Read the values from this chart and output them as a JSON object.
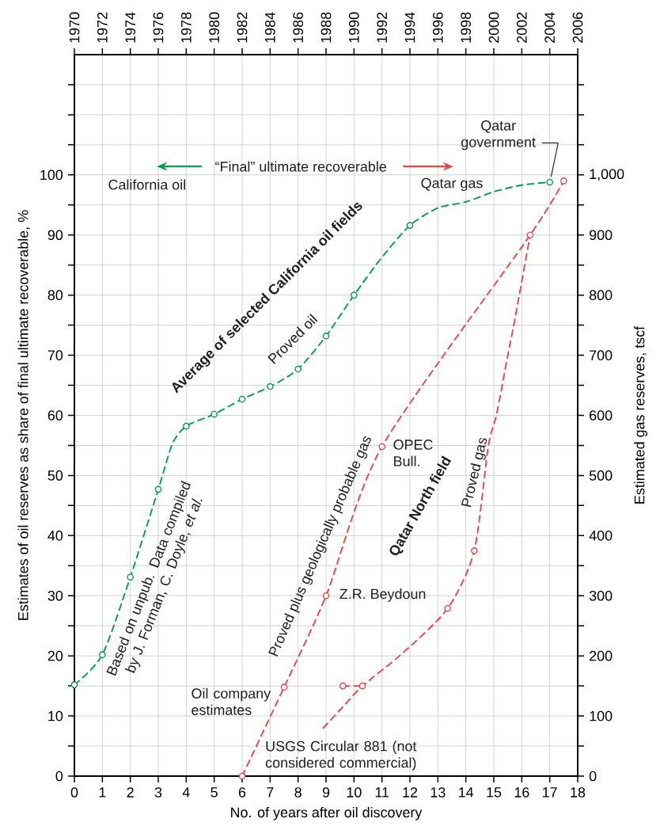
{
  "chart_data": {
    "type": "line",
    "xlabel": "No. of years after oil discovery",
    "ylabel": "Estimates of oil reserves as share of final ultimate recoverable, %",
    "y2label": "Estimated gas reserves, tscf",
    "xlim": [
      0,
      18
    ],
    "xticks": [
      0,
      1,
      2,
      3,
      4,
      5,
      6,
      7,
      8,
      9,
      10,
      11,
      12,
      13,
      14,
      15,
      16,
      17,
      18
    ],
    "ylim": [
      0,
      120
    ],
    "yticks": [
      0,
      {
        "value": 5,
        "label": null
      },
      10,
      {
        "value": 15,
        "label": null
      },
      20,
      {
        "value": 25,
        "label": null
      },
      30,
      {
        "value": 35,
        "label": null
      },
      40,
      {
        "value": 45,
        "label": null
      },
      50,
      {
        "value": 55,
        "label": null
      },
      60,
      {
        "value": 65,
        "label": null
      },
      70,
      {
        "value": 75,
        "label": null
      },
      80,
      {
        "value": 85,
        "label": null
      },
      90,
      {
        "value": 95,
        "label": null
      },
      100,
      {
        "value": 105,
        "label": null
      },
      {
        "value": 110,
        "label": null
      },
      {
        "value": 115,
        "label": null
      }
    ],
    "y2lim": [
      0,
      1200
    ],
    "y2ticks": [
      0,
      {
        "value": 50,
        "label": null
      },
      100,
      {
        "value": 150,
        "label": null
      },
      200,
      {
        "value": 250,
        "label": null
      },
      300,
      {
        "value": 350,
        "label": null
      },
      400,
      {
        "value": 450,
        "label": null
      },
      500,
      {
        "value": 550,
        "label": null
      },
      600,
      {
        "value": 650,
        "label": null
      },
      700,
      {
        "value": 750,
        "label": null
      },
      800,
      {
        "value": 850,
        "label": null
      },
      900,
      {
        "value": 950,
        "label": null
      },
      {
        "value": 1000,
        "label": "1,000"
      },
      {
        "value": 1050,
        "label": null
      },
      {
        "value": 1100,
        "label": null
      },
      {
        "value": 1150,
        "label": null
      }
    ],
    "x2lim": [
      1970,
      2006
    ],
    "x2ticks": [
      1970,
      1972,
      1974,
      1976,
      1978,
      1980,
      1982,
      1984,
      1986,
      1988,
      1990,
      1992,
      1994,
      1996,
      1998,
      2000,
      2002,
      2004,
      2006
    ],
    "grid": true,
    "line_style": "dashed",
    "series": [
      {
        "name": "Proved oil",
        "type": "line",
        "color": "#00a04a",
        "marker": "none",
        "x": [
          0,
          1,
          2,
          3,
          3.5,
          4,
          5,
          6,
          7,
          8,
          9,
          10,
          11,
          12,
          13,
          14,
          15,
          16,
          17
        ],
        "values": [
          15.2,
          20.2,
          33.1,
          47.7,
          55.2,
          58.2,
          60.2,
          62.7,
          64.8,
          67.7,
          73.2,
          80,
          86.3,
          91.6,
          94.5,
          95.5,
          97.2,
          98.3,
          98.8
        ]
      },
      {
        "type": "scatter",
        "color": "#00a04a",
        "marker": "circle",
        "x": [
          0,
          1,
          2,
          3,
          4,
          5,
          6,
          7,
          8,
          9,
          10,
          12,
          17
        ],
        "values": [
          15.2,
          20.2,
          33.1,
          47.7,
          58.2,
          60.2,
          62.7,
          64.8,
          67.7,
          73.2,
          80,
          91.6,
          98.8
        ]
      },
      {
        "name": "Proved plus geologically probable gas",
        "type": "line",
        "axis": "y2",
        "color": "#ee4444",
        "marker": "none",
        "x": [
          6,
          7.5,
          9,
          11,
          16.3,
          17.5
        ],
        "values": [
          0,
          148,
          300,
          548,
          900,
          990
        ]
      },
      {
        "name": "Proved gas",
        "type": "line",
        "axis": "y2",
        "color": "#ee4444",
        "marker": "none",
        "x": [
          8.9,
          9.6,
          10.3,
          11.7,
          13.35,
          14.3,
          14.8,
          15.1,
          15.5,
          15.75,
          16.3
        ],
        "values": [
          80,
          115,
          150,
          203,
          279,
          375,
          548,
          602,
          700,
          759,
          900
        ]
      },
      {
        "type": "line",
        "axis": "y2",
        "color": "#ee4444",
        "marker": "none",
        "x": [
          9.6,
          10.3
        ],
        "values": [
          150,
          150
        ]
      },
      {
        "type": "scatter",
        "axis": "y2",
        "color": "#ee4444",
        "marker": "circle",
        "x": [
          6,
          7.5,
          9,
          11,
          16.3,
          17.5,
          9.6,
          10.3,
          13.35,
          14.3
        ],
        "values": [
          0,
          148,
          300,
          548,
          900,
          990,
          150,
          150,
          279,
          375
        ]
      }
    ],
    "annotations": [
      "California oil",
      "Qatar gas",
      "“Final” ultimate recoverable",
      "Average of selected California oil fields",
      "Based on unpub. Data compiled by J. Forman, C. Doyle, *et al.*",
      "Qatar North field",
      "Oil company estimates",
      "Z.R. Beydoun",
      "OPEC Bull.",
      "USGS Circular 881 (not considered commercial)",
      {
        "text": "Qatar government",
        "x": 17,
        "y": 98.8
      }
    ]
  }
}
